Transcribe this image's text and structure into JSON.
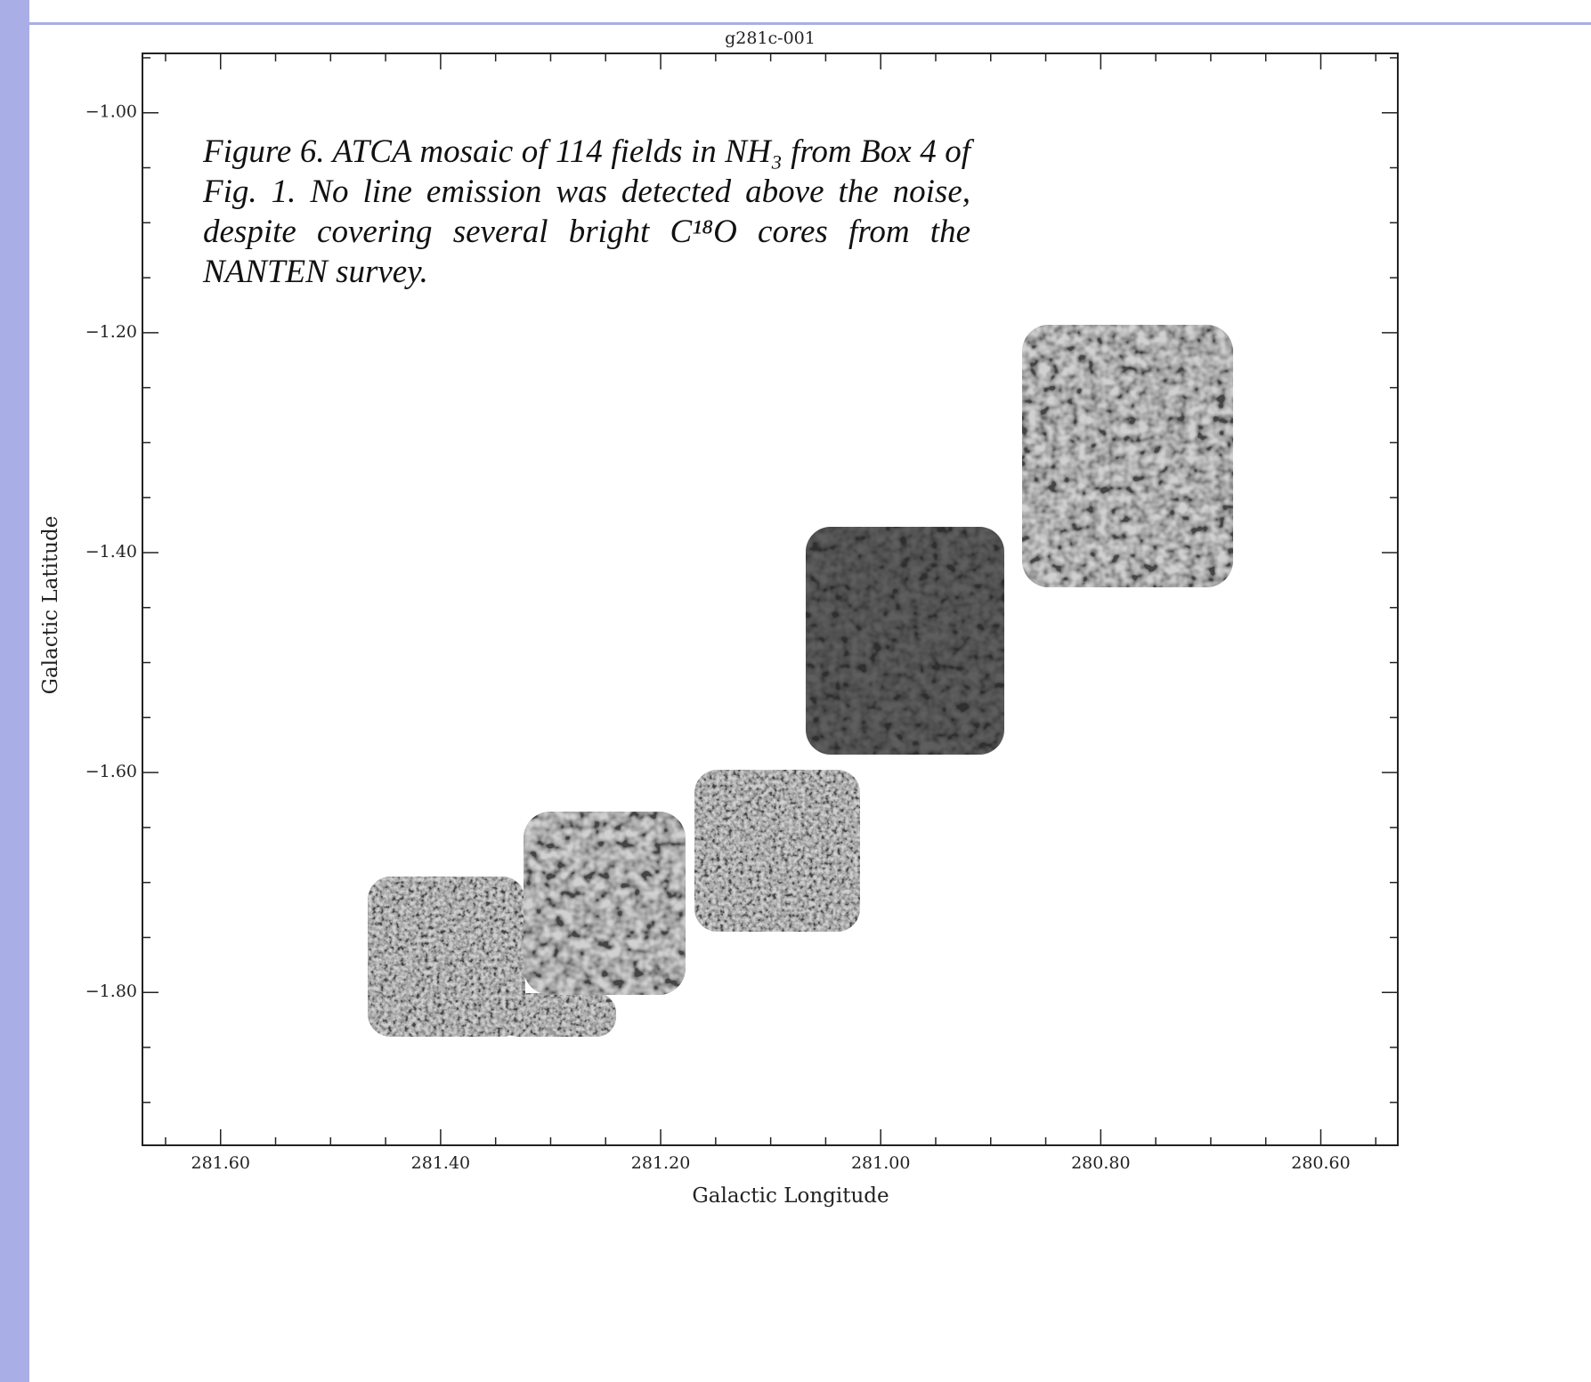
{
  "chart_data": {
    "type": "image",
    "title": "g281c-001",
    "caption": "Figure 6.  ATCA mosaic of 114 fields in NH₃ from Box 4 of Fig. 1.  No line emission was detected above the noise, despite covering several bright C¹⁸O cores from the NANTEN survey.",
    "x_label": "Galactic Longitude",
    "y_label": "Galactic Latitude",
    "xlim": [
      281.671,
      280.53
    ],
    "ylim": [
      -0.946,
      -1.939
    ],
    "xticks": [
      {
        "value": 281.6,
        "label": "281.60"
      },
      {
        "value": 281.4,
        "label": "281.40"
      },
      {
        "value": 281.2,
        "label": "281.20"
      },
      {
        "value": 281.0,
        "label": "281.00"
      },
      {
        "value": 280.8,
        "label": "280.80"
      },
      {
        "value": 280.6,
        "label": "280.60"
      }
    ],
    "yticks": [
      {
        "value": -1.0,
        "label": "−1.00"
      },
      {
        "value": -1.2,
        "label": "−1.20"
      },
      {
        "value": -1.4,
        "label": "−1.40"
      },
      {
        "value": -1.6,
        "label": "−1.60"
      },
      {
        "value": -1.8,
        "label": "−1.80"
      }
    ],
    "minor_divisions": 4
  }
}
